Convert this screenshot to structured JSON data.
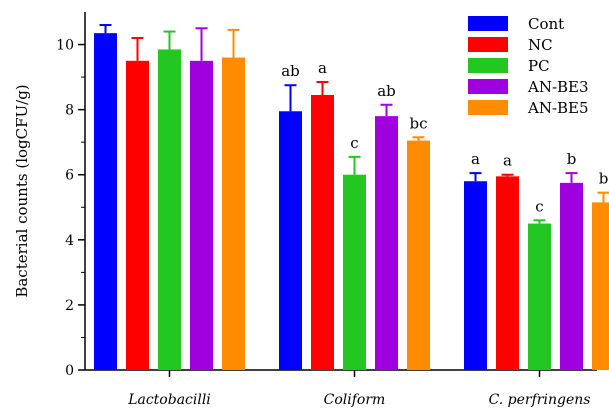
{
  "chart_data": {
    "type": "bar",
    "title": "",
    "xlabel": "",
    "ylabel": "Bacterial counts (logCFU/g)",
    "ylim": [
      0,
      11
    ],
    "yticks": [
      0,
      2,
      4,
      6,
      8,
      10
    ],
    "categories": [
      "Lactobacilli",
      "Coliform",
      "C. perfringens"
    ],
    "legend_position": "top-right",
    "series": [
      {
        "name": "Cont",
        "color": "#0000ff",
        "values": [
          10.35,
          7.95,
          5.8
        ],
        "errors": [
          0.25,
          0.8,
          0.25
        ],
        "sig": [
          "",
          "ab",
          "a"
        ]
      },
      {
        "name": "NC",
        "color": "#ff0000",
        "values": [
          9.5,
          8.45,
          5.95
        ],
        "errors": [
          0.7,
          0.4,
          0.05
        ],
        "sig": [
          "",
          "a",
          "a"
        ]
      },
      {
        "name": "PC",
        "color": "#22c722",
        "values": [
          9.85,
          6.0,
          4.5
        ],
        "errors": [
          0.55,
          0.55,
          0.1
        ],
        "sig": [
          "",
          "c",
          "c"
        ]
      },
      {
        "name": "AN-BE3",
        "color": "#a000dd",
        "values": [
          9.5,
          7.8,
          5.75
        ],
        "errors": [
          1.0,
          0.35,
          0.3
        ],
        "sig": [
          "",
          "ab",
          "b"
        ]
      },
      {
        "name": "AN-BE5",
        "color": "#ff8c00",
        "values": [
          9.6,
          7.05,
          5.15
        ],
        "errors": [
          0.85,
          0.1,
          0.3
        ],
        "sig": [
          "",
          "bc",
          "b"
        ]
      }
    ]
  }
}
